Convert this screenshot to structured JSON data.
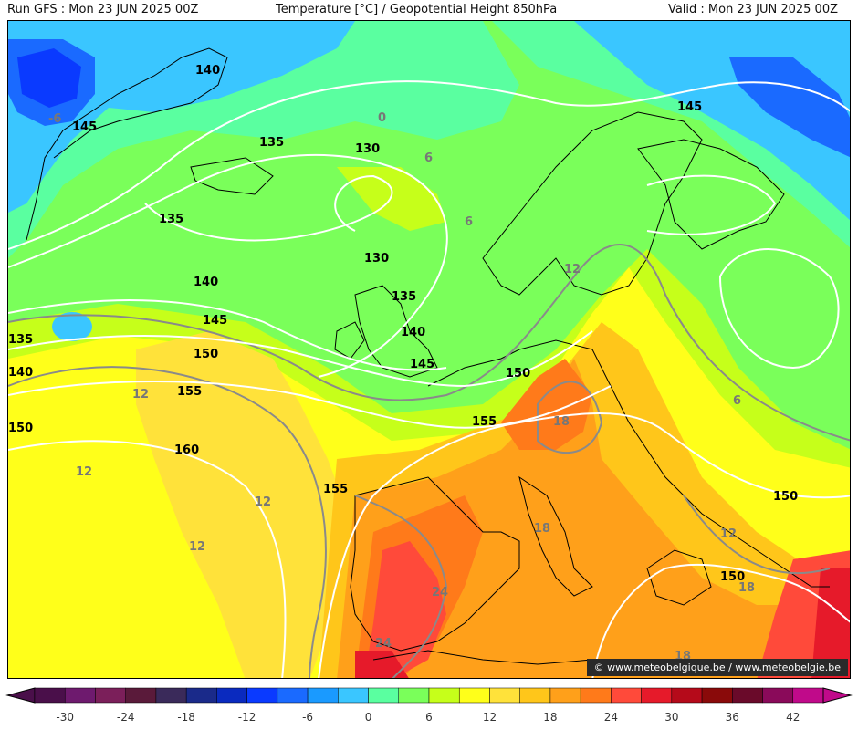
{
  "header": {
    "run": "Run GFS : Mon 23 JUN 2025 00Z",
    "title": "Temperature [°C] / Geopotential Height 850hPa",
    "valid": "Valid : Mon 23 JUN 2025 00Z"
  },
  "credit": "© www.meteobelgique.be / www.meteobelgie.be",
  "legend": {
    "colors": [
      "#4a0f4a",
      "#6e1a6e",
      "#7b1f5a",
      "#5a1a3a",
      "#3a2a5a",
      "#1a2a8a",
      "#0a2abf",
      "#0a3aff",
      "#1a6aff",
      "#1a9aff",
      "#3ac6ff",
      "#5affa0",
      "#7aff5a",
      "#c6ff1a",
      "#ffff1a",
      "#ffe23a",
      "#ffc61a",
      "#ffa01a",
      "#ff7a1a",
      "#ff4a3a",
      "#e61a2a",
      "#b50a1a",
      "#8a0a0a",
      "#6a0a2a",
      "#8a0a5a",
      "#c00a8a"
    ],
    "labels": [
      "-30",
      "-24",
      "-18",
      "-12",
      "-6",
      "0",
      "6",
      "12",
      "18",
      "24",
      "30",
      "36",
      "42"
    ]
  },
  "height_labels": [
    "140",
    "145",
    "135",
    "130",
    "6",
    "0",
    "-6",
    "135",
    "130",
    "135",
    "140",
    "145",
    "150",
    "155",
    "160",
    "155",
    "150",
    "145",
    "140",
    "135",
    "140",
    "145",
    "150",
    "12",
    "12",
    "18",
    "18",
    "24",
    "24",
    "18",
    "12",
    "150",
    "18",
    "6",
    "12",
    "6",
    "12",
    "12",
    "150",
    "155"
  ]
}
